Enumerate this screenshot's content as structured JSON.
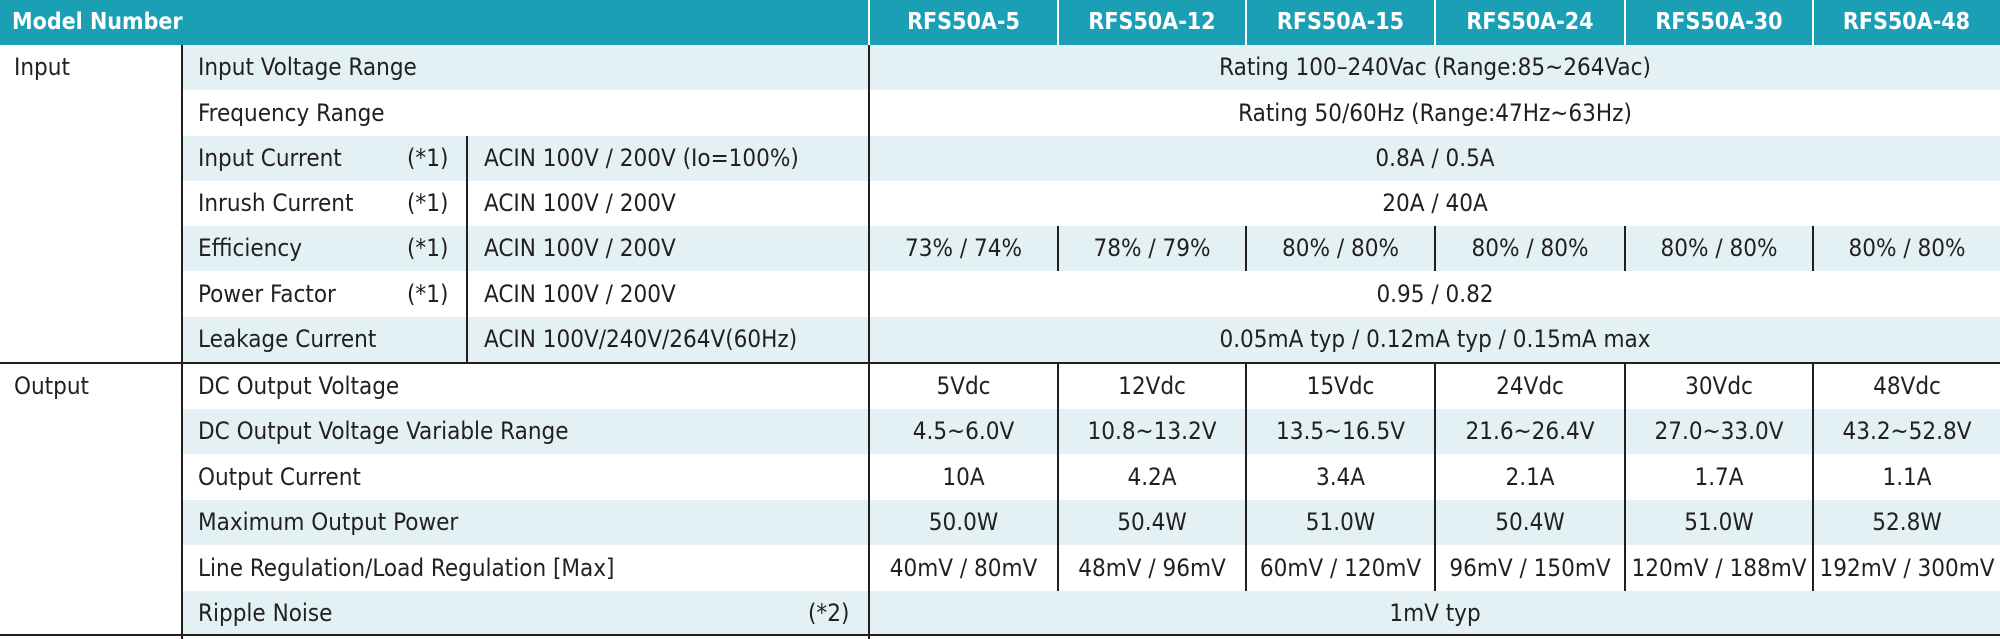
{
  "header": {
    "title": "Model Number",
    "models": [
      "RFS50A-5",
      "RFS50A-12",
      "RFS50A-15",
      "RFS50A-24",
      "RFS50A-30",
      "RFS50A-48"
    ]
  },
  "sections": {
    "input": "Input",
    "output": "Output"
  },
  "input_rows": {
    "input_voltage_range": {
      "label": "Input Voltage Range",
      "value": "Rating 100–240Vac (Range:85~264Vac)"
    },
    "frequency_range": {
      "label": "Frequency Range",
      "value": "Rating 50/60Hz (Range:47Hz~63Hz)"
    },
    "input_current": {
      "label": "Input Current",
      "note": "(*1)",
      "condition": "ACIN 100V / 200V (Io=100%)",
      "value": "0.8A / 0.5A"
    },
    "inrush_current": {
      "label": "Inrush Current",
      "note": "(*1)",
      "condition": "ACIN 100V / 200V",
      "value": "20A / 40A"
    },
    "efficiency": {
      "label": "Efficiency",
      "note": "(*1)",
      "condition": "ACIN 100V / 200V",
      "values": [
        "73% / 74%",
        "78% / 79%",
        "80% / 80%",
        "80% / 80%",
        "80% / 80%",
        "80% / 80%"
      ]
    },
    "power_factor": {
      "label": "Power Factor",
      "note": "(*1)",
      "condition": "ACIN 100V / 200V",
      "value": "0.95 / 0.82"
    },
    "leakage_current": {
      "label": "Leakage Current",
      "condition": "ACIN 100V/240V/264V(60Hz)",
      "value": "0.05mA typ / 0.12mA typ / 0.15mA max"
    }
  },
  "output_rows": {
    "dc_output_voltage": {
      "label": "DC Output Voltage",
      "values": [
        "5Vdc",
        "12Vdc",
        "15Vdc",
        "24Vdc",
        "30Vdc",
        "48Vdc"
      ]
    },
    "variable_range": {
      "label": "DC Output Voltage Variable Range",
      "values": [
        "4.5~6.0V",
        "10.8~13.2V",
        "13.5~16.5V",
        "21.6~26.4V",
        "27.0~33.0V",
        "43.2~52.8V"
      ]
    },
    "output_current": {
      "label": "Output Current",
      "values": [
        "10A",
        "4.2A",
        "3.4A",
        "2.1A",
        "1.7A",
        "1.1A"
      ]
    },
    "max_output_power": {
      "label": "Maximum Output Power",
      "values": [
        "50.0W",
        "50.4W",
        "51.0W",
        "50.4W",
        "51.0W",
        "52.8W"
      ]
    },
    "line_load_regulation": {
      "label": "Line Regulation/Load Regulation [Max]",
      "values": [
        "40mV / 80mV",
        "48mV / 96mV",
        "60mV / 120mV",
        "96mV / 150mV",
        "120mV / 188mV",
        "192mV / 300mV"
      ]
    },
    "ripple_noise": {
      "label": "Ripple Noise",
      "note": "(*2)",
      "value": "1mV typ"
    }
  },
  "colors": {
    "header_bg": "#1a9fb4",
    "header_text": "#ffffff",
    "stripe_bg": "#e3f1f4",
    "text": "#231f20"
  }
}
